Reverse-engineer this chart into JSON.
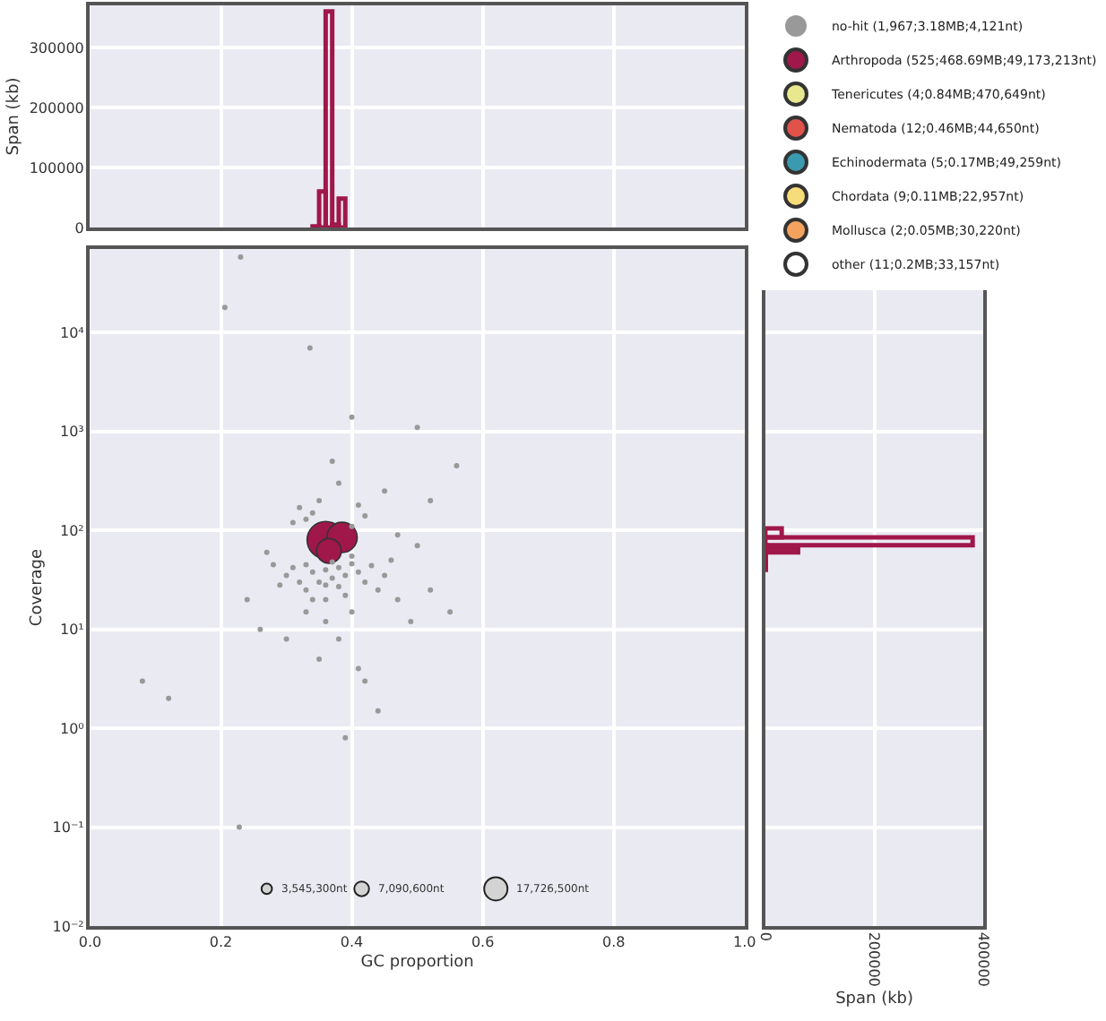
{
  "chart_data": [
    {
      "type": "histogram",
      "ylabel": "Span (kb)",
      "color": "#a0174a",
      "bins": [
        0.34,
        0.35,
        0.36,
        0.37,
        0.38,
        0.39
      ],
      "values": [
        2000,
        60000,
        360000,
        5000,
        48000
      ],
      "xlim": [
        0,
        1
      ],
      "xticks": [
        {
          "value": 0,
          "label": null
        },
        {
          "value": 0.2,
          "label": null
        },
        {
          "value": 0.4,
          "label": null
        },
        {
          "value": 0.6,
          "label": null
        },
        {
          "value": 0.8,
          "label": null
        },
        {
          "value": 1,
          "label": null
        }
      ],
      "ylim": [
        0,
        370000
      ],
      "yticks": [
        0,
        100000,
        200000,
        300000
      ],
      "tick_labels": "y",
      "grid": true
    },
    {
      "type": "bubble",
      "xlabel": "GC proportion",
      "ylabel": "Coverage",
      "log": "y",
      "grid": true,
      "legend": "top right",
      "marker": "circle",
      "xlim": [
        0,
        1
      ],
      "xticks": [
        {
          "value": 0,
          "label": "0.0"
        },
        0.2,
        0.4,
        0.6,
        0.8,
        {
          "value": 1,
          "label": "1.0"
        }
      ],
      "ylim": [
        0.01,
        70000
      ],
      "yticks": [
        {
          "value": 0.01,
          "label": "10⁻²"
        },
        {
          "value": 0.1,
          "label": "10⁻¹"
        },
        {
          "value": 1,
          "label": "10⁰"
        },
        {
          "value": 10,
          "label": "10¹"
        },
        {
          "value": 100,
          "label": "10²"
        },
        {
          "value": 1000,
          "label": "10³"
        },
        {
          "value": 10000,
          "label": "10⁴"
        }
      ],
      "size_legend": [
        {
          "value": 3545300,
          "label": "3,545,300nt"
        },
        {
          "value": 7090600,
          "label": "7,090,600nt"
        },
        {
          "value": 17726500,
          "label": "17,726,500nt"
        }
      ],
      "series": [
        {
          "name": "no-hit (1,967;3.18MB;4,121nt)",
          "color": "#999999",
          "type": "scatter",
          "x": [
            0.33,
            0.34,
            0.36,
            0.37,
            0.38,
            0.39,
            0.4,
            0.32,
            0.31,
            0.3,
            0.35,
            0.36,
            0.37,
            0.38,
            0.41,
            0.42,
            0.43,
            0.33,
            0.29,
            0.28,
            0.44,
            0.45,
            0.36,
            0.39,
            0.4,
            0.34,
            0.46,
            0.27,
            0.33,
            0.4,
            0.36,
            0.38,
            0.35,
            0.41,
            0.47,
            0.49,
            0.52,
            0.55,
            0.31,
            0.35,
            0.38,
            0.37,
            0.34,
            0.41,
            0.45,
            0.47,
            0.5,
            0.52,
            0.56,
            0.26,
            0.24,
            0.3,
            0.08,
            0.12,
            0.42,
            0.44,
            0.39,
            0.23,
            0.206,
            0.336,
            0.4,
            0.5,
            0.228,
            0.32,
            0.33,
            0.42,
            0.4
          ],
          "values": [
            45,
            38,
            40,
            48,
            42,
            35,
            46,
            30,
            42,
            35,
            30,
            28,
            33,
            27,
            38,
            30,
            44,
            25,
            28,
            45,
            25,
            35,
            20,
            22,
            55,
            20,
            50,
            60,
            15,
            15,
            12,
            8,
            5,
            4,
            20,
            12,
            25,
            15,
            120,
            200,
            300,
            500,
            150,
            180,
            250,
            90,
            70,
            200,
            450,
            10,
            20,
            8,
            3,
            2,
            3,
            1.5,
            0.8,
            58000,
            18000,
            7000,
            1400,
            1100,
            0.1,
            170,
            130,
            140,
            110
          ],
          "marker": "circle"
        },
        {
          "name": "Arthropoda (525;468.69MB;49,173,213nt)",
          "color": "#a0174a",
          "x": [
            0.36,
            0.385,
            0.365
          ],
          "values": [
            80,
            85,
            62
          ],
          "sizes": [
            45000000,
            30000000,
            20000000
          ]
        },
        {
          "name": "Tenericutes (4;0.84MB;470,649nt)",
          "color": "#e8e88f"
        },
        {
          "name": "Nematoda (12;0.46MB;44,650nt)",
          "color": "#e0524a"
        },
        {
          "name": "Echinodermata (5;0.17MB;49,259nt)",
          "color": "#3a9bb0"
        },
        {
          "name": "Chordata (9;0.11MB;22,957nt)",
          "color": "#f7dc7a"
        },
        {
          "name": "Mollusca (2;0.05MB;30,220nt)",
          "color": "#f4a35f"
        },
        {
          "name": "other (11;0.2MB;33,157nt)",
          "color": "#ffffff"
        }
      ]
    },
    {
      "type": "histogram",
      "orientation": "horizontal",
      "xlabel": "Span (kb)",
      "color": "#a0174a",
      "log": "y",
      "bins": [
        40,
        60,
        66,
        71,
        85,
        105
      ],
      "values": [
        1000,
        60000,
        2000,
        380000,
        30000
      ],
      "xlim": [
        0,
        400000
      ],
      "xticks": [
        0,
        200000,
        400000
      ],
      "ylim": [
        0.01,
        70000
      ],
      "yticks": [
        {
          "value": 0.01,
          "label": null
        },
        {
          "value": 0.1,
          "label": null
        },
        {
          "value": 1,
          "label": null
        },
        {
          "value": 10,
          "label": null
        },
        {
          "value": 100,
          "label": null
        },
        {
          "value": 1000,
          "label": null
        },
        {
          "value": 10000,
          "label": null
        }
      ],
      "tick_labels": "x",
      "grid": true
    }
  ]
}
